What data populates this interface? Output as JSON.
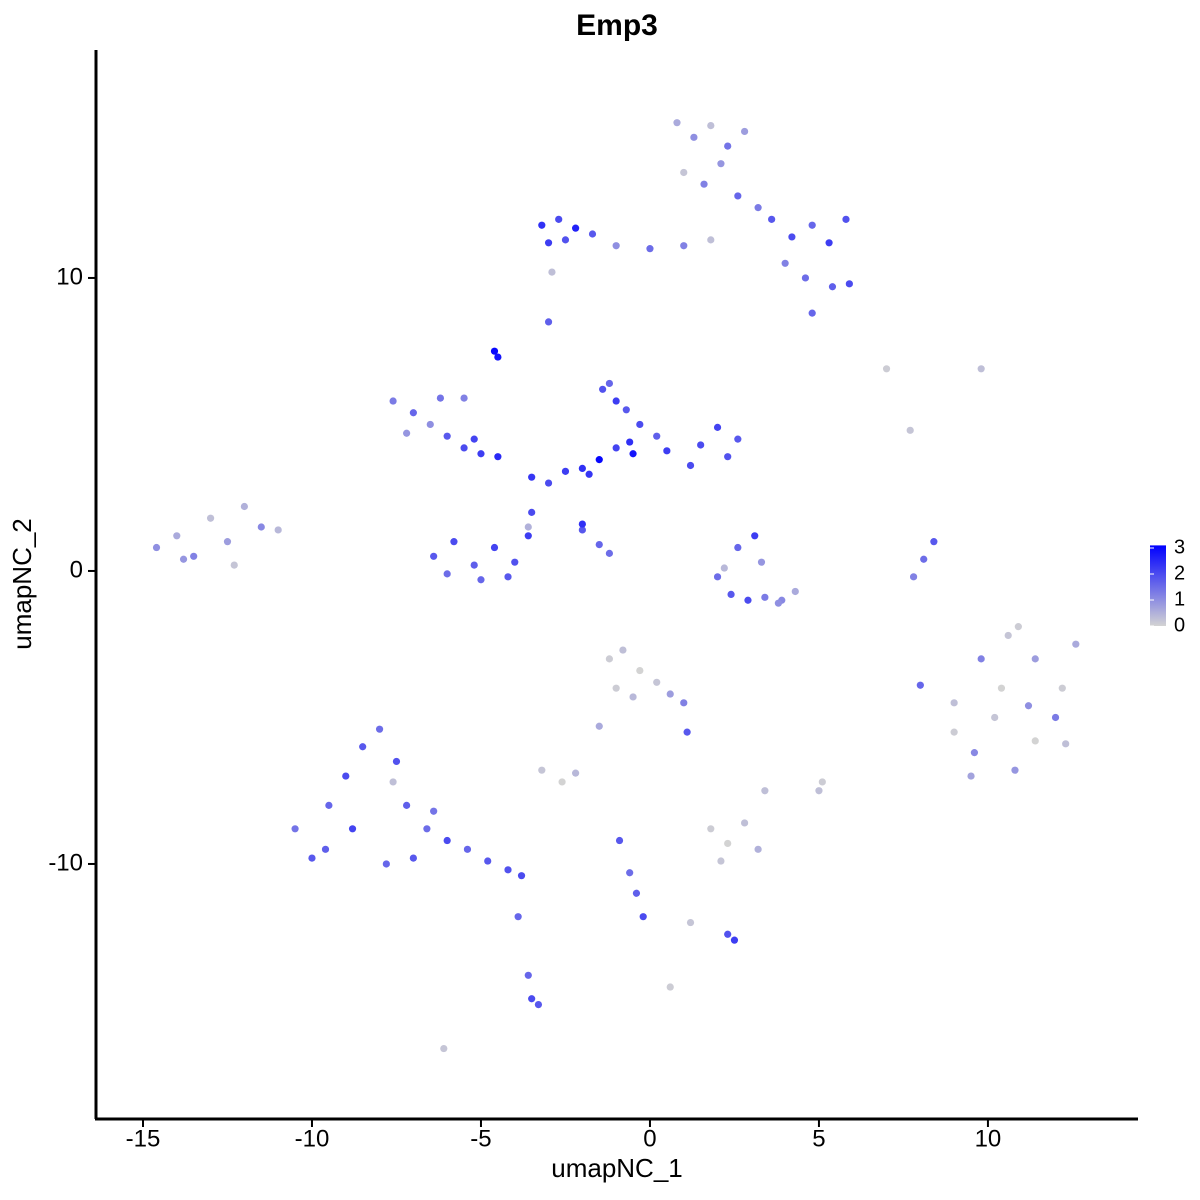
{
  "chart_data": {
    "type": "scatter",
    "title": "Emp3",
    "x_label": "umapNC_1",
    "y_label": "umapNC_2",
    "xlim": [
      -16.42,
      14.44
    ],
    "ylim": [
      -18.67,
      17.78
    ],
    "xticks": [
      -15,
      -10,
      -5,
      0,
      5,
      10
    ],
    "yticks": [
      -10,
      0,
      10
    ],
    "color_low": "#d3d3d3",
    "color_high": "#0000ff",
    "colorbar_lim": [
      0,
      3.1
    ],
    "colorbar_ticks": [
      0,
      1,
      2,
      3
    ],
    "x": [
      -14.6,
      -14.0,
      -13.5,
      -13.0,
      -12.5,
      -12.0,
      -11.5,
      -11.0,
      -13.8,
      -12.3,
      0.8,
      1.3,
      1.8,
      2.3,
      2.8,
      1.0,
      1.6,
      2.1,
      2.6,
      3.2,
      -3.2,
      -2.7,
      -2.2,
      -1.7,
      -3.0,
      -2.5,
      -1.0,
      0.0,
      1.0,
      1.8,
      3.6,
      4.2,
      4.8,
      5.3,
      5.8,
      4.0,
      4.6,
      5.4,
      5.9,
      4.8,
      -7.6,
      -7.0,
      -6.5,
      -6.0,
      -5.5,
      -5.0,
      -4.5,
      -7.2,
      -6.2,
      -5.2,
      -3.5,
      -3.0,
      -2.5,
      -2.0,
      -1.5,
      -1.0,
      -0.5,
      0.5,
      1.5,
      2.3,
      -1.4,
      -1.0,
      -0.7,
      -0.3,
      0.2,
      2.0,
      2.6,
      -1.2,
      -0.6,
      1.2,
      -6.4,
      -5.8,
      -5.2,
      -4.6,
      -4.0,
      -3.6,
      -5.0,
      -4.2,
      -3.5,
      -6.0,
      -4.6,
      -4.5,
      -2.0,
      -1.5,
      -1.2,
      -3.0,
      -2.9,
      7.0,
      9.8,
      7.7,
      2.0,
      2.4,
      2.9,
      3.4,
      3.9,
      4.3,
      2.6,
      3.1,
      3.3,
      2.2,
      8.4,
      8.1,
      7.8,
      8.0,
      9.0,
      9.8,
      10.6,
      11.4,
      12.2,
      12.6,
      9.0,
      9.6,
      10.2,
      10.8,
      11.4,
      12.0,
      9.5,
      10.4,
      11.2,
      12.3,
      -10.5,
      -10.0,
      -9.5,
      -9.0,
      -8.5,
      -8.0,
      -7.5,
      -9.6,
      -8.8,
      -7.8,
      -7.2,
      -6.6,
      -6.0,
      -5.4,
      -4.8,
      -4.2,
      -3.8,
      -7.6,
      -7.0,
      -6.4,
      -1.2,
      -0.8,
      -0.3,
      0.2,
      0.6,
      -1.0,
      -0.5,
      1.0,
      1.1,
      -1.5,
      -3.2,
      -2.6,
      -2.2,
      1.8,
      2.3,
      2.8,
      3.2,
      2.1,
      3.4,
      5.1,
      -0.9,
      -0.6,
      -0.4,
      -0.2,
      1.2,
      2.3,
      2.5,
      -3.6,
      -3.5,
      -3.3,
      -3.9,
      -6.1,
      0.6,
      -5.5,
      -3.6,
      5.0,
      10.9,
      -2.0,
      3.8,
      -1.8
    ],
    "values": [
      0.8,
      1.2,
      0.5,
      1.8,
      1.0,
      2.2,
      1.5,
      1.4,
      0.4,
      0.2,
      15.3,
      14.8,
      15.2,
      14.5,
      15.0,
      13.6,
      13.2,
      13.9,
      12.8,
      12.4,
      11.8,
      12.0,
      11.7,
      11.5,
      11.2,
      11.3,
      11.1,
      11.0,
      11.1,
      11.3,
      12.0,
      11.4,
      11.8,
      11.2,
      12.0,
      10.5,
      10.0,
      9.7,
      9.8,
      8.8,
      5.8,
      5.4,
      5.0,
      4.6,
      4.2,
      4.0,
      3.9,
      4.7,
      5.9,
      4.5,
      3.2,
      3.0,
      3.4,
      3.5,
      3.8,
      4.2,
      4.0,
      4.1,
      4.3,
      3.9,
      6.2,
      5.8,
      5.5,
      5.0,
      4.6,
      4.9,
      4.5,
      6.4,
      4.4,
      3.6,
      0.5,
      1.0,
      0.2,
      0.8,
      0.3,
      1.2,
      -0.3,
      -0.2,
      2.0,
      -0.1,
      7.5,
      7.3,
      1.4,
      0.9,
      0.6,
      8.5,
      10.2,
      6.9,
      6.9,
      4.8,
      -0.2,
      -0.8,
      -1.0,
      -0.9,
      -1.0,
      -0.7,
      0.8,
      1.2,
      0.3,
      0.1,
      1.0,
      0.4,
      -0.2,
      -3.9,
      -4.5,
      -3.0,
      -2.2,
      -3.0,
      -4.0,
      -2.5,
      -5.5,
      -6.2,
      -5.0,
      -6.8,
      -5.8,
      -5.0,
      -7.0,
      -4.0,
      -4.6,
      -5.9,
      -8.8,
      -9.8,
      -8.0,
      -7.0,
      -6.0,
      -5.4,
      -6.5,
      -9.5,
      -8.8,
      -10.0,
      -8.0,
      -8.8,
      -9.2,
      -9.5,
      -9.9,
      -10.2,
      -10.4,
      -7.2,
      -9.8,
      -8.2,
      -3.0,
      -2.7,
      -3.4,
      -3.8,
      -4.2,
      -4.0,
      -4.3,
      -4.5,
      -5.5,
      -5.3,
      -6.8,
      -7.2,
      -6.9,
      -8.8,
      -9.3,
      -8.6,
      -9.5,
      -9.9,
      -7.5,
      -7.2,
      -9.2,
      -10.3,
      -11.0,
      -11.8,
      -12.0,
      -12.4,
      -12.6,
      -13.8,
      -14.6,
      -14.8,
      -11.8,
      -16.3,
      -14.2,
      5.9,
      1.5,
      -7.5,
      -1.9,
      1.6,
      -1.1,
      3.3
    ],
    "expression": [
      1.0,
      0.6,
      1.2,
      0.3,
      0.8,
      0.5,
      1.1,
      0.4,
      0.9,
      0.2,
      0.6,
      1.0,
      0.3,
      1.4,
      0.8,
      0.2,
      1.2,
      0.9,
      1.6,
      1.3,
      2.4,
      2.0,
      2.6,
      1.8,
      2.2,
      1.9,
      1.0,
      1.5,
      1.2,
      0.3,
      1.8,
      2.0,
      1.6,
      2.2,
      1.9,
      1.2,
      1.5,
      1.7,
      2.0,
      1.6,
      1.3,
      1.6,
      1.0,
      1.8,
      2.0,
      2.2,
      2.5,
      0.9,
      1.4,
      2.1,
      2.3,
      2.0,
      2.2,
      2.4,
      3.0,
      2.1,
      2.8,
      2.2,
      2.0,
      1.9,
      1.9,
      2.2,
      1.8,
      2.0,
      1.7,
      2.1,
      1.8,
      1.6,
      2.4,
      2.0,
      1.8,
      2.0,
      1.7,
      2.1,
      1.9,
      2.2,
      1.6,
      1.8,
      2.0,
      1.5,
      3.0,
      2.8,
      1.8,
      1.6,
      1.5,
      1.7,
      0.3,
      0.1,
      0.3,
      0.2,
      1.5,
      1.8,
      2.0,
      1.3,
      1.1,
      0.6,
      1.6,
      2.2,
      0.9,
      0.4,
      1.8,
      1.5,
      1.2,
      1.6,
      0.3,
      1.2,
      0.2,
      0.8,
      0.1,
      0.6,
      0.1,
      1.1,
      0.2,
      0.9,
      0.0,
      1.3,
      0.7,
      0.0,
      1.0,
      0.3,
      1.4,
      1.8,
      1.6,
      2.0,
      1.8,
      1.5,
      1.9,
      1.7,
      2.1,
      1.6,
      1.7,
      1.5,
      2.0,
      1.6,
      1.8,
      1.9,
      2.0,
      0.3,
      1.8,
      1.4,
      0.1,
      0.3,
      0.0,
      0.2,
      0.8,
      0.1,
      0.4,
      1.2,
      1.8,
      0.6,
      0.2,
      0.0,
      0.4,
      0.1,
      0.0,
      0.3,
      0.5,
      0.2,
      0.3,
      0.1,
      1.8,
      1.5,
      1.7,
      2.0,
      0.2,
      1.9,
      2.2,
      1.6,
      2.0,
      1.8,
      1.6,
      0.2,
      0.1,
      1.2,
      0.5,
      0.3,
      0.1,
      2.4,
      1.0,
      2.3
    ]
  }
}
